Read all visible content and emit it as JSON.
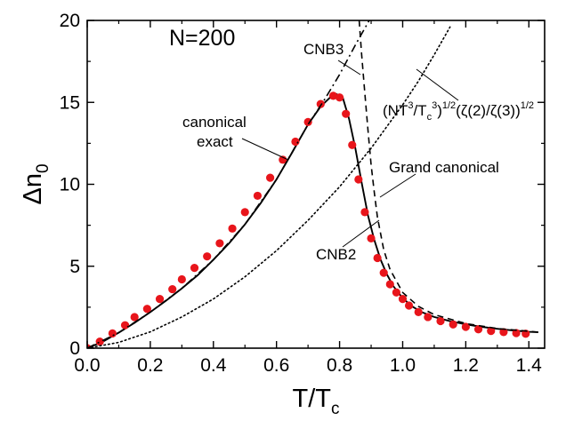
{
  "chart_data": {
    "type": "line",
    "xlabel": "T/T",
    "xlabel_sub": "c",
    "ylabel": "Δn",
    "ylabel_sub": "0",
    "xlim": [
      0.0,
      1.45
    ],
    "ylim": [
      0,
      20
    ],
    "x_ticks": [
      "0.0",
      "0.2",
      "0.4",
      "0.6",
      "0.8",
      "1.0",
      "1.2",
      "1.4"
    ],
    "y_ticks": [
      "0",
      "5",
      "10",
      "15",
      "20"
    ],
    "grid": false,
    "legend": "none",
    "colors": {
      "dots": "#e8151b",
      "lines": "#000000"
    },
    "annotations": {
      "n_label": "N=200",
      "cnb3": "CNB3",
      "canonical_1": "canonical",
      "canonical_2": "exact",
      "grand_canonical": "Grand canonical",
      "cnb2": "CNB2",
      "formula_a": "(NT",
      "formula_b": "3",
      "formula_c": "/T",
      "formula_d": "c",
      "formula_e": "3",
      "formula_f": ")",
      "formula_g": "1/2",
      "formula_h": "(ζ(2)/ζ(3))",
      "formula_i": "1/2"
    },
    "series": [
      {
        "style": "solid",
        "x": [
          0.0,
          0.05,
          0.1,
          0.15,
          0.2,
          0.25,
          0.3,
          0.35,
          0.4,
          0.45,
          0.5,
          0.55,
          0.6,
          0.65,
          0.7,
          0.74,
          0.77,
          0.79,
          0.81,
          0.83,
          0.85,
          0.87,
          0.89,
          0.91,
          0.93,
          0.95,
          0.97,
          1.0,
          1.03,
          1.06,
          1.1,
          1.15,
          1.2,
          1.25,
          1.3,
          1.35,
          1.4,
          1.43
        ],
        "y": [
          0.0,
          0.4,
          0.95,
          1.55,
          2.2,
          2.9,
          3.65,
          4.45,
          5.4,
          6.4,
          7.55,
          8.85,
          10.3,
          11.95,
          13.65,
          14.75,
          15.3,
          15.5,
          15.3,
          14.0,
          12.2,
          10.1,
          8.1,
          6.6,
          5.4,
          4.5,
          3.8,
          3.05,
          2.55,
          2.2,
          1.9,
          1.65,
          1.45,
          1.3,
          1.18,
          1.08,
          1.0,
          0.97
        ]
      },
      {
        "style": "dots",
        "x": [
          0.0,
          0.04,
          0.08,
          0.12,
          0.15,
          0.19,
          0.23,
          0.27,
          0.3,
          0.34,
          0.38,
          0.42,
          0.46,
          0.5,
          0.54,
          0.58,
          0.62,
          0.66,
          0.7,
          0.74,
          0.78,
          0.8,
          0.82,
          0.84,
          0.86,
          0.88,
          0.9,
          0.92,
          0.94,
          0.96,
          0.98,
          1.0,
          1.02,
          1.05,
          1.08,
          1.12,
          1.16,
          1.2,
          1.24,
          1.28,
          1.32,
          1.36,
          1.39
        ],
        "y": [
          0.0,
          0.4,
          0.9,
          1.4,
          1.9,
          2.4,
          3.0,
          3.6,
          4.2,
          4.9,
          5.6,
          6.4,
          7.3,
          8.3,
          9.3,
          10.4,
          11.5,
          12.6,
          13.8,
          14.9,
          15.4,
          15.3,
          14.3,
          12.4,
          10.3,
          8.3,
          6.7,
          5.5,
          4.6,
          3.9,
          3.4,
          3.0,
          2.6,
          2.2,
          1.9,
          1.65,
          1.45,
          1.3,
          1.15,
          1.05,
          0.98,
          0.92,
          0.88
        ]
      },
      {
        "style": "dashdot",
        "x": [
          0.0,
          0.1,
          0.2,
          0.3,
          0.4,
          0.5,
          0.6,
          0.7,
          0.75,
          0.8,
          0.85,
          0.9
        ],
        "y": [
          0.0,
          0.95,
          2.2,
          3.65,
          5.4,
          7.55,
          10.3,
          13.65,
          15.1,
          16.7,
          18.5,
          20.2
        ]
      },
      {
        "style": "dotted",
        "x": [
          0.0,
          0.1,
          0.2,
          0.3,
          0.4,
          0.5,
          0.6,
          0.7,
          0.8,
          0.9,
          1.0,
          1.05,
          1.1,
          1.15
        ],
        "y": [
          0.0,
          0.35,
          1.0,
          1.9,
          3.0,
          4.35,
          5.95,
          7.8,
          9.85,
          12.2,
          14.85,
          16.3,
          17.9,
          19.6
        ]
      },
      {
        "style": "dashed",
        "x": [
          0.862,
          0.87,
          0.88,
          0.89,
          0.9,
          0.91,
          0.92,
          0.94,
          0.96,
          1.0,
          1.05,
          1.1,
          1.2,
          1.3,
          1.43
        ],
        "y": [
          20.0,
          17.9,
          15.6,
          13.3,
          11.2,
          9.5,
          8.0,
          6.0,
          4.8,
          3.4,
          2.55,
          2.05,
          1.5,
          1.2,
          0.98
        ]
      }
    ]
  }
}
